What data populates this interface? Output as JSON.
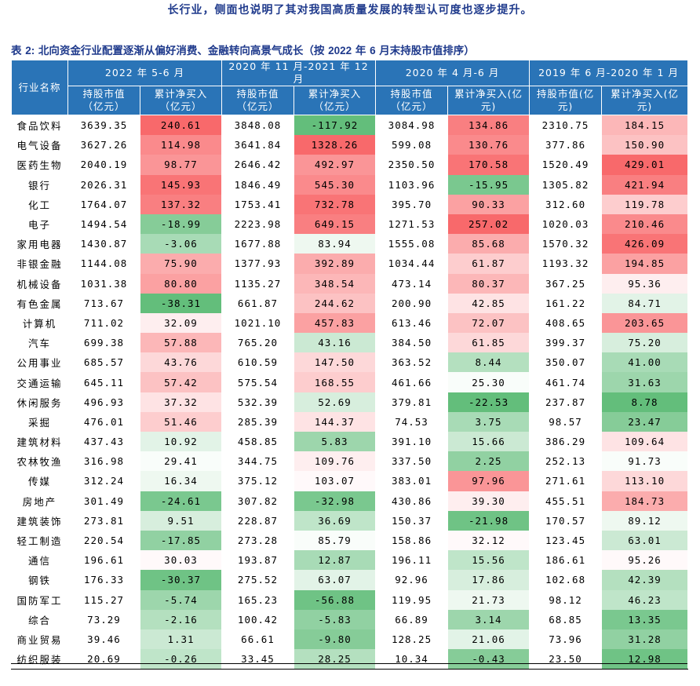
{
  "intro_text": "长行业，侧面也说明了其对我国高质量发展的转型认可度也逐步提升。",
  "table": {
    "caption_prefix": "表",
    "caption_number": "2:",
    "caption_text": "北向资金行业配置逐渐从偏好消费、金融转向高景气成长（按",
    "caption_year": "2022",
    "caption_mid": "年",
    "caption_month": "6",
    "caption_tail": "月末持股市值排序）",
    "industry_header": "行业名称",
    "periods": [
      {
        "label": "2022 年 5-6 月",
        "holding_header": "持股市值\n（亿元）",
        "flow_header": "累计净买入\n（亿元）"
      },
      {
        "label": "2020 年 11 月-2021 年 12 月",
        "holding_header": "持股市值\n（亿元）",
        "flow_header": "累计净买入\n（亿元）"
      },
      {
        "label": "2020 年 4 月-6 月",
        "holding_header": "持股市值\n（亿元）",
        "flow_header": "累计净买入(亿\n元)"
      },
      {
        "label": "2019 年 6 月-2020 年 1 月",
        "holding_header": "持股市值(亿\n元)",
        "flow_header": "累计净买入(亿\n元)"
      }
    ],
    "rows": [
      {
        "industry": "食品饮料",
        "values": [
          "3639.35",
          "240.61",
          "3848.08",
          "-117.92",
          "3084.98",
          "134.86",
          "2310.75",
          "184.15"
        ]
      },
      {
        "industry": "电气设备",
        "values": [
          "3627.26",
          "114.98",
          "3641.84",
          "1328.26",
          "599.08",
          "130.76",
          "377.86",
          "150.90"
        ]
      },
      {
        "industry": "医药生物",
        "values": [
          "2040.19",
          "98.77",
          "2646.42",
          "492.97",
          "2350.50",
          "170.58",
          "1520.49",
          "429.01"
        ]
      },
      {
        "industry": "银行",
        "values": [
          "2026.31",
          "145.93",
          "1846.49",
          "545.30",
          "1103.96",
          "-15.95",
          "1305.82",
          "421.94"
        ]
      },
      {
        "industry": "化工",
        "values": [
          "1764.07",
          "137.32",
          "1753.41",
          "732.78",
          "395.70",
          "90.33",
          "312.60",
          "119.78"
        ]
      },
      {
        "industry": "电子",
        "values": [
          "1494.54",
          "-18.99",
          "2223.98",
          "649.15",
          "1271.53",
          "257.02",
          "1020.03",
          "210.46"
        ]
      },
      {
        "industry": "家用电器",
        "values": [
          "1430.87",
          "-3.06",
          "1677.88",
          "83.94",
          "1555.08",
          "85.68",
          "1570.32",
          "426.09"
        ]
      },
      {
        "industry": "非银金融",
        "values": [
          "1144.08",
          "75.90",
          "1377.93",
          "392.89",
          "1034.44",
          "61.87",
          "1193.32",
          "194.85"
        ]
      },
      {
        "industry": "机械设备",
        "values": [
          "1031.38",
          "80.80",
          "1135.27",
          "348.54",
          "473.14",
          "80.37",
          "367.25",
          "95.36"
        ]
      },
      {
        "industry": "有色金属",
        "values": [
          "713.67",
          "-38.31",
          "661.87",
          "244.62",
          "200.90",
          "42.85",
          "161.22",
          "84.71"
        ]
      },
      {
        "industry": "计算机",
        "values": [
          "711.02",
          "32.09",
          "1021.10",
          "457.83",
          "613.46",
          "72.07",
          "408.65",
          "203.65"
        ]
      },
      {
        "industry": "汽车",
        "values": [
          "699.38",
          "57.88",
          "765.20",
          "43.16",
          "384.50",
          "61.85",
          "399.37",
          "75.20"
        ]
      },
      {
        "industry": "公用事业",
        "values": [
          "685.57",
          "43.76",
          "610.59",
          "147.50",
          "363.52",
          "8.44",
          "350.07",
          "41.00"
        ]
      },
      {
        "industry": "交通运输",
        "values": [
          "645.11",
          "57.42",
          "575.54",
          "168.55",
          "461.66",
          "25.30",
          "461.74",
          "31.63"
        ]
      },
      {
        "industry": "休闲服务",
        "values": [
          "496.93",
          "37.32",
          "532.39",
          "52.69",
          "379.81",
          "-22.53",
          "237.87",
          "8.78"
        ]
      },
      {
        "industry": "采掘",
        "values": [
          "476.01",
          "51.46",
          "285.39",
          "144.37",
          "74.53",
          "3.75",
          "98.57",
          "23.47"
        ]
      },
      {
        "industry": "建筑材料",
        "values": [
          "437.43",
          "10.92",
          "458.85",
          "5.83",
          "391.10",
          "15.66",
          "386.29",
          "109.64"
        ]
      },
      {
        "industry": "农林牧渔",
        "values": [
          "316.98",
          "29.41",
          "344.75",
          "109.76",
          "337.50",
          "2.25",
          "252.13",
          "91.73"
        ]
      },
      {
        "industry": "传媒",
        "values": [
          "312.24",
          "16.34",
          "375.12",
          "103.07",
          "383.01",
          "97.96",
          "271.61",
          "113.10"
        ]
      },
      {
        "industry": "房地产",
        "values": [
          "301.49",
          "-24.61",
          "307.82",
          "-32.98",
          "430.86",
          "39.30",
          "455.51",
          "184.73"
        ]
      },
      {
        "industry": "建筑装饰",
        "values": [
          "273.81",
          "9.51",
          "228.87",
          "36.69",
          "150.37",
          "-21.98",
          "170.57",
          "89.12"
        ]
      },
      {
        "industry": "轻工制造",
        "values": [
          "220.54",
          "-17.85",
          "273.28",
          "85.79",
          "158.86",
          "32.12",
          "123.45",
          "63.01"
        ]
      },
      {
        "industry": "通信",
        "values": [
          "196.61",
          "30.03",
          "193.87",
          "12.87",
          "196.11",
          "15.56",
          "186.61",
          "95.26"
        ]
      },
      {
        "industry": "钢铁",
        "values": [
          "176.33",
          "-30.37",
          "275.52",
          "63.07",
          "92.96",
          "17.86",
          "102.68",
          "42.39"
        ]
      },
      {
        "industry": "国防军工",
        "values": [
          "115.27",
          "-5.74",
          "165.23",
          "-56.88",
          "119.95",
          "21.73",
          "98.12",
          "46.23"
        ]
      },
      {
        "industry": "综合",
        "values": [
          "73.29",
          "-2.16",
          "100.42",
          "-5.83",
          "66.89",
          "3.14",
          "68.85",
          "13.35"
        ]
      },
      {
        "industry": "商业贸易",
        "values": [
          "39.46",
          "1.31",
          "66.61",
          "-9.80",
          "128.25",
          "21.06",
          "73.96",
          "31.28"
        ]
      },
      {
        "industry": "纺织服装",
        "values": [
          "20.69",
          "-0.26",
          "33.45",
          "28.25",
          "10.34",
          "-0.43",
          "23.50",
          "12.98"
        ]
      }
    ],
    "colors": {
      "header_bg": "#2a74b7",
      "heat_high": "#f8696b",
      "heat_mid": "#ffffff",
      "heat_low": "#63be7b",
      "title_color": "#1f3a8c"
    }
  }
}
